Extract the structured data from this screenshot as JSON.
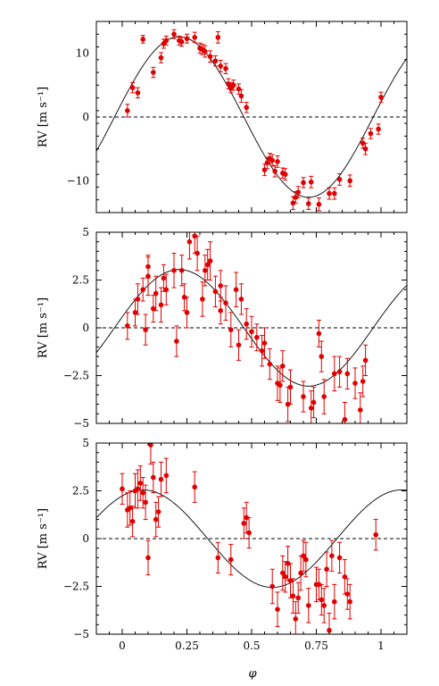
{
  "figure": {
    "xlabel": "φ",
    "x_tick_labels": [
      "0",
      "0.25",
      "0.5",
      "0.75",
      "1"
    ]
  },
  "chart_data": [
    {
      "type": "scatter",
      "ylabel": "RV [m s⁻¹]",
      "xlim": [
        -0.1,
        1.1
      ],
      "ylim": [
        -15,
        15
      ],
      "x_ticks": [
        0,
        0.25,
        0.5,
        0.75,
        1
      ],
      "y_ticks": [
        -10,
        0,
        10
      ],
      "y_tick_labels": [
        "−10",
        "0",
        "10"
      ],
      "reference_line_y": 0,
      "model_curve": {
        "amplitude": 12.6,
        "phase_of_max": 0.22,
        "period": 1
      },
      "series": [
        {
          "x": [
            0.02,
            0.04,
            0.06,
            0.08,
            0.12,
            0.15,
            0.16,
            0.17,
            0.2,
            0.22,
            0.23,
            0.25,
            0.28,
            0.3,
            0.31,
            0.32,
            0.34,
            0.36,
            0.37,
            0.38,
            0.4,
            0.41,
            0.42,
            0.43,
            0.45,
            0.46,
            0.48,
            0.55,
            0.56,
            0.57,
            0.58,
            0.59,
            0.6,
            0.62,
            0.63,
            0.66,
            0.67,
            0.68,
            0.7,
            0.72,
            0.73,
            0.76,
            0.8,
            0.82,
            0.84,
            0.88,
            0.93,
            0.94,
            0.96,
            0.99,
            1.0
          ],
          "y": [
            1.0,
            4.6,
            3.8,
            12.2,
            7.0,
            9.3,
            11.5,
            12.0,
            13.0,
            12.0,
            11.8,
            12.3,
            12.5,
            10.8,
            10.6,
            10.3,
            9.5,
            8.8,
            12.5,
            8.0,
            7.6,
            5.2,
            4.6,
            5.0,
            4.4,
            3.3,
            1.5,
            -8.3,
            -7.2,
            -6.5,
            -6.8,
            -8.5,
            -7.0,
            -8.8,
            -9.0,
            -13.5,
            -12.6,
            -11.8,
            -10.3,
            -13.6,
            -10.2,
            -13.7,
            -12.0,
            -12.0,
            -9.8,
            -10.0,
            -4.1,
            -5.0,
            -2.6,
            -1.9,
            3.1
          ],
          "err": [
            1,
            0.8,
            0.8,
            0.6,
            0.8,
            0.8,
            0.7,
            0.7,
            0.7,
            0.7,
            0.7,
            0.7,
            0.8,
            0.8,
            0.8,
            0.9,
            0.9,
            0.8,
            0.9,
            0.9,
            0.8,
            0.8,
            0.8,
            0.8,
            0.8,
            1.0,
            0.8,
            0.9,
            0.9,
            0.8,
            0.9,
            0.9,
            0.9,
            0.8,
            0.9,
            1.0,
            0.9,
            0.9,
            0.8,
            0.9,
            0.9,
            1.0,
            0.9,
            0.9,
            0.9,
            0.9,
            0.8,
            0.9,
            0.8,
            0.8,
            0.8
          ]
        }
      ]
    },
    {
      "type": "scatter",
      "ylabel": "RV [m s⁻¹]",
      "xlim": [
        -0.1,
        1.1
      ],
      "ylim": [
        -5,
        5
      ],
      "x_ticks": [
        0,
        0.25,
        0.5,
        0.75,
        1
      ],
      "y_ticks": [
        -5,
        -2.5,
        0,
        2.5,
        5
      ],
      "y_tick_labels": [
        "−5",
        "−2.5",
        "0",
        "2.5",
        "5"
      ],
      "reference_line_y": 0,
      "model_curve": {
        "amplitude": 3.05,
        "phase_of_max": 0.22,
        "period": 1
      },
      "series": [
        {
          "x": [
            0.02,
            0.05,
            0.06,
            0.08,
            0.09,
            0.1,
            0.1,
            0.12,
            0.13,
            0.15,
            0.16,
            0.17,
            0.2,
            0.21,
            0.23,
            0.24,
            0.25,
            0.26,
            0.28,
            0.29,
            0.31,
            0.32,
            0.33,
            0.34,
            0.36,
            0.38,
            0.38,
            0.4,
            0.42,
            0.44,
            0.45,
            0.46,
            0.48,
            0.5,
            0.52,
            0.54,
            0.55,
            0.57,
            0.6,
            0.61,
            0.62,
            0.64,
            0.65,
            0.7,
            0.73,
            0.74,
            0.76,
            0.77,
            0.78,
            0.82,
            0.84,
            0.86,
            0.87,
            0.9,
            0.92,
            0.93,
            0.94
          ],
          "y": [
            0.1,
            0.8,
            1.5,
            2.0,
            -0.1,
            2.7,
            3.2,
            1.0,
            1.8,
            1.2,
            2.6,
            2.0,
            3.0,
            -0.7,
            3.0,
            1.6,
            0.8,
            4.5,
            4.8,
            3.9,
            1.5,
            3.0,
            3.3,
            3.5,
            1.9,
            2.2,
            0.9,
            1.3,
            -0.1,
            2.0,
            -0.9,
            1.5,
            0.2,
            -0.2,
            -0.5,
            -1.2,
            -0.8,
            -1.9,
            -2.9,
            -3.0,
            -2.0,
            -4.0,
            -3.1,
            -3.6,
            -4.2,
            -3.9,
            -0.3,
            -1.5,
            -3.6,
            -2.4,
            -2.3,
            -4.8,
            -2.4,
            -2.9,
            -4.3,
            -2.8,
            -1.7
          ],
          "err": [
            0.7,
            0.7,
            0.8,
            0.6,
            0.8,
            1.0,
            0.6,
            0.7,
            0.9,
            0.9,
            0.7,
            0.8,
            0.9,
            0.8,
            0.8,
            0.7,
            0.8,
            0.9,
            0.9,
            0.9,
            0.9,
            0.8,
            0.8,
            1.0,
            0.8,
            0.8,
            0.7,
            0.9,
            0.9,
            0.9,
            0.8,
            0.8,
            0.8,
            0.8,
            0.7,
            0.8,
            0.8,
            0.8,
            0.9,
            0.9,
            0.8,
            0.9,
            0.9,
            0.8,
            0.9,
            0.8,
            0.7,
            0.8,
            0.9,
            0.9,
            0.8,
            0.9,
            0.8,
            0.8,
            0.9,
            0.8,
            0.8
          ]
        }
      ]
    },
    {
      "type": "scatter",
      "ylabel": "RV [m s⁻¹]",
      "xlim": [
        -0.1,
        1.1
      ],
      "ylim": [
        -5,
        5
      ],
      "x_ticks": [
        0,
        0.25,
        0.5,
        0.75,
        1
      ],
      "y_ticks": [
        -5,
        -2.5,
        0,
        2.5,
        5
      ],
      "y_tick_labels": [
        "−5",
        "−2.5",
        "0",
        "2.5",
        "5"
      ],
      "reference_line_y": 0,
      "model_curve": {
        "amplitude": 2.55,
        "phase_of_max": 0.08,
        "period": 1
      },
      "series": [
        {
          "x": [
            0.0,
            0.02,
            0.03,
            0.04,
            0.05,
            0.06,
            0.07,
            0.08,
            0.09,
            0.1,
            0.11,
            0.12,
            0.13,
            0.14,
            0.15,
            0.17,
            0.28,
            0.37,
            0.42,
            0.47,
            0.48,
            0.49,
            0.58,
            0.6,
            0.62,
            0.63,
            0.64,
            0.65,
            0.66,
            0.67,
            0.68,
            0.69,
            0.7,
            0.71,
            0.72,
            0.75,
            0.76,
            0.77,
            0.78,
            0.79,
            0.8,
            0.81,
            0.82,
            0.84,
            0.86,
            0.87,
            0.88,
            0.98
          ],
          "y": [
            2.6,
            1.5,
            1.6,
            0.9,
            2.5,
            2.6,
            2.9,
            2.4,
            1.9,
            -1.0,
            4.9,
            3.2,
            1.0,
            1.4,
            3.1,
            3.3,
            2.7,
            -1.0,
            -1.1,
            0.8,
            1.1,
            0.3,
            -2.5,
            -3.7,
            -1.8,
            -2.0,
            -1.3,
            -2.2,
            -3.0,
            -4.2,
            -3.1,
            -1.8,
            -0.9,
            -1.1,
            -3.5,
            -2.4,
            -2.4,
            -3.2,
            -3.5,
            -1.6,
            -4.8,
            -0.9,
            -3.3,
            -1.0,
            -2.0,
            -2.9,
            -3.3,
            0.2
          ],
          "err": [
            0.8,
            0.9,
            0.9,
            0.8,
            0.9,
            1.0,
            0.9,
            0.8,
            0.9,
            0.9,
            1.0,
            0.8,
            0.9,
            0.8,
            0.9,
            0.9,
            0.8,
            0.8,
            0.8,
            0.8,
            0.8,
            0.8,
            0.9,
            0.9,
            0.9,
            0.8,
            0.9,
            0.9,
            0.9,
            0.9,
            0.8,
            0.9,
            0.8,
            0.9,
            0.9,
            0.9,
            0.8,
            0.8,
            0.9,
            0.9,
            0.9,
            0.8,
            0.9,
            0.8,
            0.9,
            0.8,
            0.9,
            0.8
          ]
        }
      ]
    }
  ]
}
